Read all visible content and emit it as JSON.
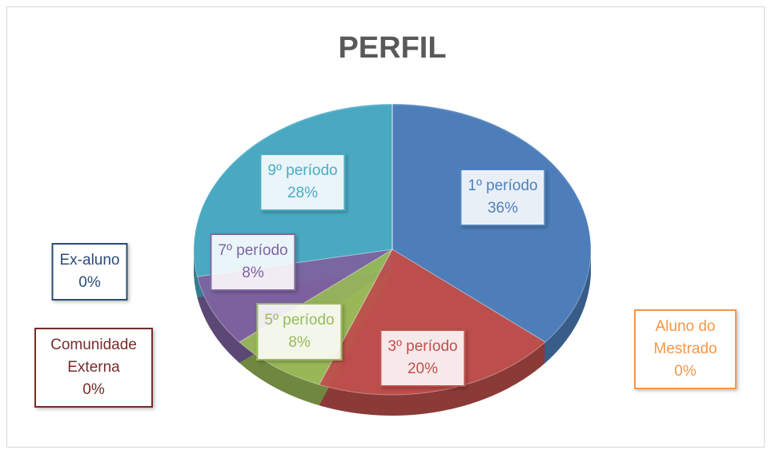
{
  "chart_data": {
    "type": "pie",
    "title": "PERFIL",
    "categories": [
      "1º período",
      "3º período",
      "5º período",
      "7º período",
      "9º período",
      "Aluno do Mestrado",
      "Comunidade Externa",
      "Ex-aluno"
    ],
    "values": [
      36,
      20,
      8,
      8,
      28,
      0,
      0,
      0
    ],
    "value_labels": [
      "36%",
      "20%",
      "8%",
      "8%",
      "28%",
      "0%",
      "0%",
      "0%"
    ],
    "colors": [
      "#4f81bd",
      "#c0504d",
      "#9bbb59",
      "#8064a2",
      "#4bacc6",
      "#f79646",
      "#772c2a",
      "#2c4d75"
    ]
  }
}
